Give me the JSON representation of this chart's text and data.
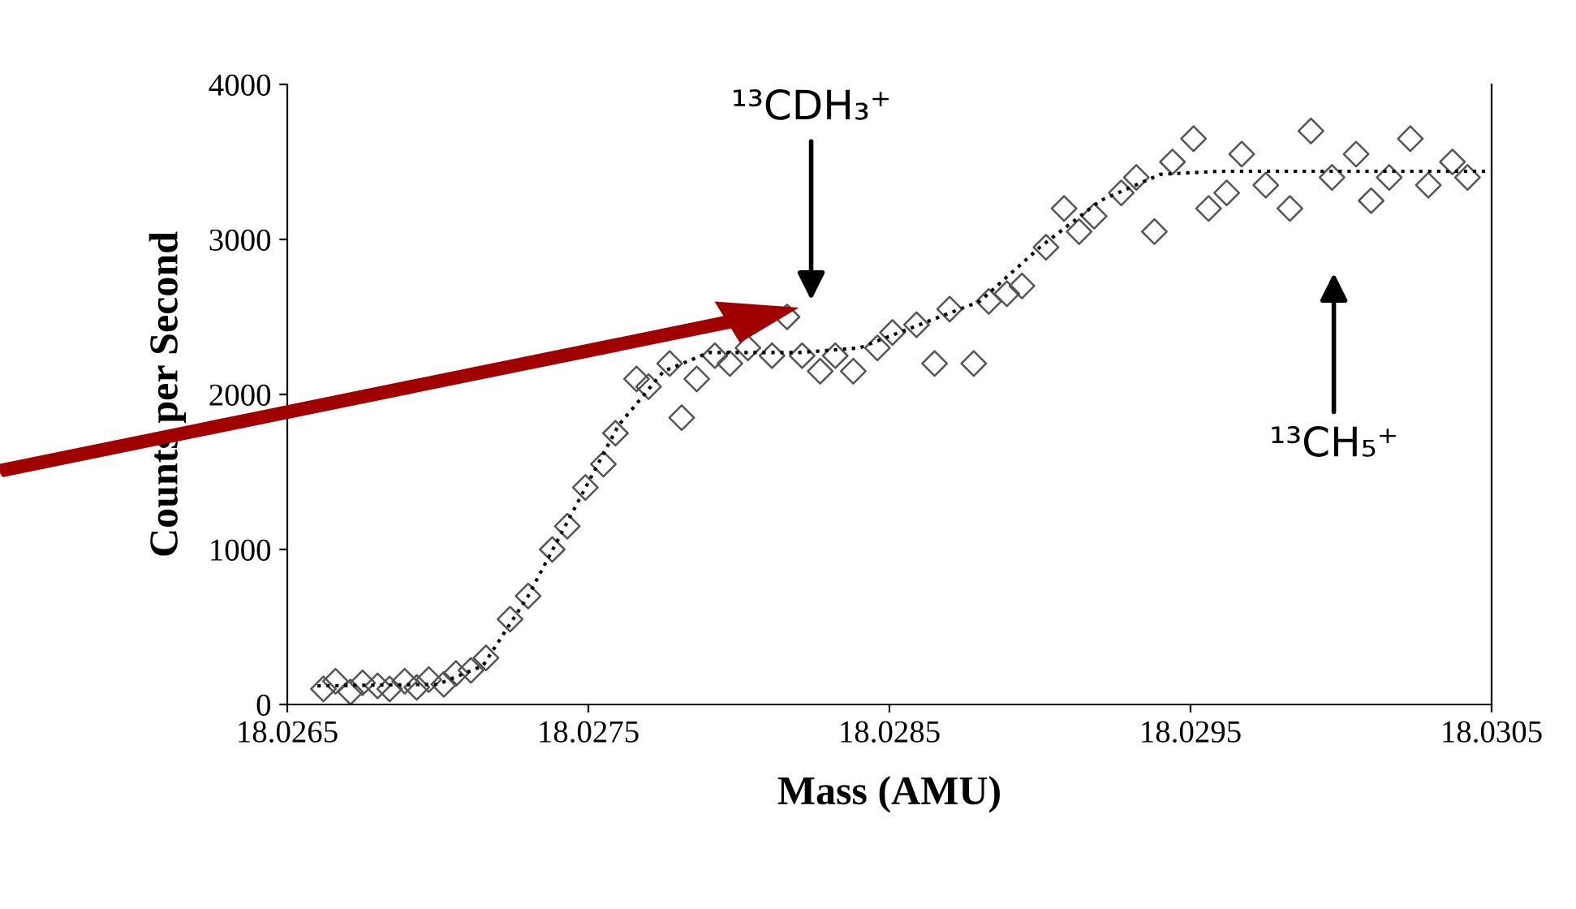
{
  "chart_data": {
    "type": "scatter",
    "xlabel": "Mass (AMU)",
    "ylabel": "Counts per Second",
    "xlim": [
      18.0265,
      18.0305
    ],
    "xticks": [
      18.0265,
      18.0275,
      18.0285,
      18.0295,
      18.0305
    ],
    "ylim": [
      0,
      4000
    ],
    "yticks": [
      0,
      1000,
      2000,
      3000,
      4000
    ],
    "grid": false,
    "series": [
      {
        "marker": "diamond",
        "color": "#555555",
        "x": [
          18.02662,
          18.02666,
          18.02671,
          18.02675,
          18.0268,
          18.02684,
          18.02689,
          18.02693,
          18.02697,
          18.02702,
          18.02706,
          18.02711,
          18.02716,
          18.02724,
          18.0273,
          18.02738,
          18.02743,
          18.02749,
          18.02755,
          18.02759,
          18.02766,
          18.0277,
          18.02777,
          18.02781,
          18.02786,
          18.02792,
          18.02797,
          18.02803,
          18.02811,
          18.02816,
          18.02821,
          18.02827,
          18.02832,
          18.02838,
          18.02846,
          18.02851,
          18.02859,
          18.02865,
          18.0287,
          18.02878,
          18.02883,
          18.02889,
          18.02894,
          18.02902,
          18.02908,
          18.02913,
          18.02918,
          18.02927,
          18.02932,
          18.02938,
          18.02944,
          18.02951,
          18.02956,
          18.02962,
          18.02967,
          18.02975,
          18.02983,
          18.0299,
          18.02997,
          18.03005,
          18.0301,
          18.03016,
          18.03023,
          18.03029,
          18.03037,
          18.03042
        ],
        "values": [
          100,
          150,
          80,
          140,
          120,
          100,
          150,
          110,
          160,
          130,
          200,
          220,
          300,
          550,
          700,
          1000,
          1150,
          1400,
          1550,
          1750,
          2100,
          2050,
          2200,
          1850,
          2100,
          2250,
          2200,
          2300,
          2250,
          2500,
          2250,
          2150,
          2250,
          2150,
          2300,
          2400,
          2450,
          2200,
          2550,
          2200,
          2600,
          2650,
          2700,
          2950,
          3200,
          3050,
          3150,
          3300,
          3400,
          3050,
          3500,
          3650,
          3200,
          3300,
          3550,
          3350,
          3200,
          3700,
          3400,
          3550,
          3250,
          3400,
          3650,
          3350,
          3500,
          3400
        ]
      },
      {
        "type": "line",
        "line_style": "dotted",
        "marker": "none",
        "color": "#000000",
        "x": [
          18.0266,
          18.027,
          18.02715,
          18.0273,
          18.02745,
          18.0276,
          18.02775,
          18.0279,
          18.0282,
          18.0284,
          18.0286,
          18.0288,
          18.029,
          18.0292,
          18.0294,
          18.0296,
          18.0305
        ],
        "values": [
          120,
          130,
          250,
          700,
          1250,
          1800,
          2150,
          2270,
          2270,
          2300,
          2450,
          2600,
          2950,
          3250,
          3420,
          3440,
          3440
        ]
      }
    ],
    "annotations": [
      "¹³CDH₃⁺",
      "¹³CH₅⁺"
    ]
  }
}
